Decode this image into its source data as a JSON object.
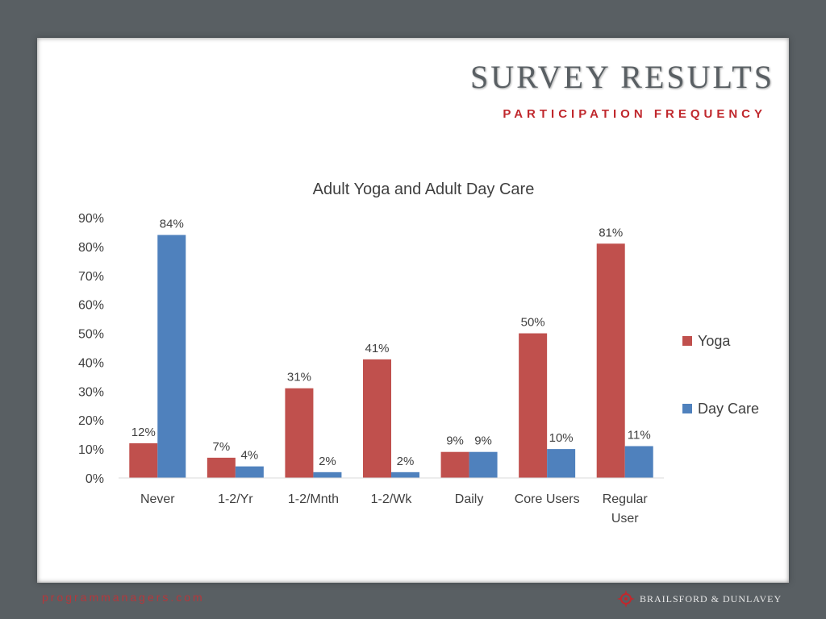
{
  "slide": {
    "title": "SURVEY RESULTS",
    "subtitle": "PARTICIPATION FREQUENCY"
  },
  "footer": {
    "website": "programmanagers.com",
    "brand": "BRAILSFORD & DUNLAVEY",
    "logo_icon": "compass-rose-icon"
  },
  "colors": {
    "background": "#595f63",
    "accent": "#c0282d",
    "yoga": "#c0504d",
    "day_care": "#4f81bd"
  },
  "chart_data": {
    "type": "bar",
    "title": "Adult Yoga and Adult Day Care",
    "xlabel": "",
    "ylabel": "",
    "categories": [
      "Never",
      "1-2/Yr",
      "1-2/Mnth",
      "1-2/Wk",
      "Daily",
      "Core Users",
      "Regular User"
    ],
    "series": [
      {
        "name": "Yoga",
        "color": "#c0504d",
        "values": [
          0.12,
          0.07,
          0.31,
          0.41,
          0.09,
          0.5,
          0.81
        ],
        "labels": [
          "12%",
          "7%",
          "31%",
          "41%",
          "9%",
          "50%",
          "81%"
        ]
      },
      {
        "name": "Day Care",
        "color": "#4f81bd",
        "values": [
          0.84,
          0.04,
          0.02,
          0.02,
          0.09,
          0.1,
          0.11
        ],
        "labels": [
          "84%",
          "4%",
          "2%",
          "2%",
          "9%",
          "10%",
          "11%"
        ]
      }
    ],
    "ylim": [
      0,
      0.9
    ],
    "yticks": [
      0,
      0.1,
      0.2,
      0.3,
      0.4,
      0.5,
      0.6,
      0.7,
      0.8,
      0.9
    ],
    "ytick_labels": [
      "0%",
      "10%",
      "20%",
      "30%",
      "40%",
      "50%",
      "60%",
      "70%",
      "80%",
      "90%"
    ],
    "grid": false,
    "legend": "right"
  }
}
